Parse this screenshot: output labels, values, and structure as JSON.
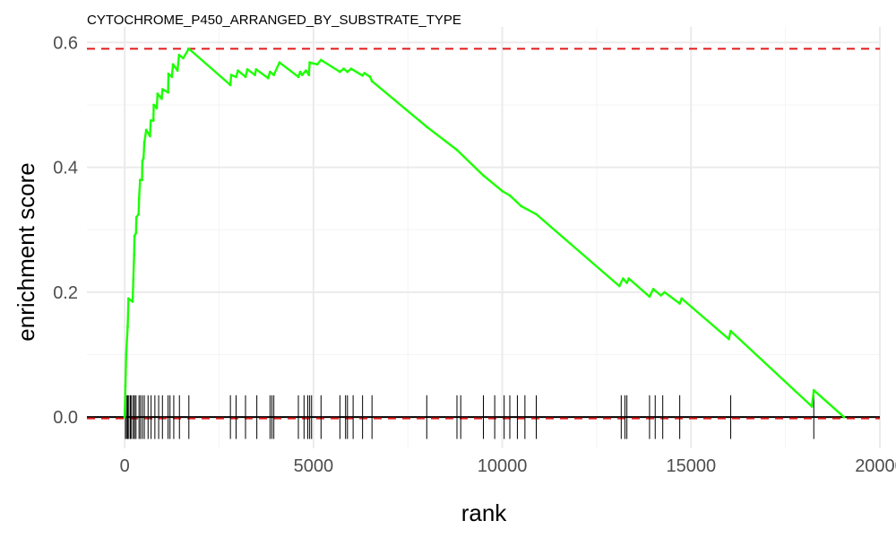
{
  "chart_data": {
    "type": "line",
    "title": "CYTOCHROME_P450_ARRANGED_BY_SUBSTRATE_TYPE",
    "xlabel": "rank",
    "ylabel": "enrichment score",
    "xlim": [
      -1000,
      20000
    ],
    "ylim": [
      -0.05,
      0.625
    ],
    "x_ticks": [
      0,
      5000,
      10000,
      15000,
      20000
    ],
    "x_tick_labels": [
      "0",
      "5000",
      "10000",
      "15000",
      "20000"
    ],
    "y_ticks": [
      0.0,
      0.2,
      0.4,
      0.6
    ],
    "y_tick_labels": [
      "0.0",
      "0.2",
      "0.4",
      "0.6"
    ],
    "grid": true,
    "legend": "none",
    "colors": {
      "curve": "#1cff00",
      "threshold": "#e41a1c",
      "hits": "#000000",
      "zero": "#000000",
      "grid": "#ebebeb"
    },
    "series": [
      {
        "values": [
          [
            0,
            0.0
          ],
          [
            20,
            0.05
          ],
          [
            40,
            0.1
          ],
          [
            80,
            0.145
          ],
          [
            100,
            0.19
          ],
          [
            210,
            0.185
          ],
          [
            230,
            0.22
          ],
          [
            250,
            0.26
          ],
          [
            260,
            0.29
          ],
          [
            300,
            0.295
          ],
          [
            310,
            0.32
          ],
          [
            370,
            0.325
          ],
          [
            380,
            0.35
          ],
          [
            410,
            0.38
          ],
          [
            460,
            0.38
          ],
          [
            470,
            0.41
          ],
          [
            500,
            0.415
          ],
          [
            520,
            0.44
          ],
          [
            570,
            0.46
          ],
          [
            670,
            0.45
          ],
          [
            690,
            0.475
          ],
          [
            760,
            0.475
          ],
          [
            770,
            0.5
          ],
          [
            850,
            0.495
          ],
          [
            870,
            0.518
          ],
          [
            980,
            0.51
          ],
          [
            1000,
            0.525
          ],
          [
            1150,
            0.52
          ],
          [
            1160,
            0.55
          ],
          [
            1250,
            0.545
          ],
          [
            1280,
            0.565
          ],
          [
            1400,
            0.555
          ],
          [
            1440,
            0.58
          ],
          [
            1550,
            0.575
          ],
          [
            1700,
            0.59
          ],
          [
            2800,
            0.532
          ],
          [
            2820,
            0.548
          ],
          [
            2950,
            0.545
          ],
          [
            3000,
            0.555
          ],
          [
            3200,
            0.545
          ],
          [
            3250,
            0.557
          ],
          [
            3450,
            0.548
          ],
          [
            3480,
            0.557
          ],
          [
            3800,
            0.543
          ],
          [
            3850,
            0.553
          ],
          [
            3950,
            0.548
          ],
          [
            4100,
            0.568
          ],
          [
            4600,
            0.545
          ],
          [
            4650,
            0.553
          ],
          [
            4700,
            0.548
          ],
          [
            4800,
            0.555
          ],
          [
            4880,
            0.548
          ],
          [
            4900,
            0.568
          ],
          [
            5100,
            0.565
          ],
          [
            5200,
            0.572
          ],
          [
            5700,
            0.553
          ],
          [
            5800,
            0.558
          ],
          [
            5900,
            0.553
          ],
          [
            6000,
            0.558
          ],
          [
            6300,
            0.547
          ],
          [
            6350,
            0.551
          ],
          [
            6500,
            0.545
          ],
          [
            6550,
            0.538
          ],
          [
            8000,
            0.465
          ],
          [
            8800,
            0.428
          ],
          [
            9500,
            0.387
          ],
          [
            10000,
            0.362
          ],
          [
            10200,
            0.355
          ],
          [
            10500,
            0.338
          ],
          [
            10900,
            0.325
          ],
          [
            13100,
            0.21
          ],
          [
            13200,
            0.222
          ],
          [
            13300,
            0.215
          ],
          [
            13350,
            0.222
          ],
          [
            13900,
            0.193
          ],
          [
            14000,
            0.205
          ],
          [
            14200,
            0.195
          ],
          [
            14300,
            0.2
          ],
          [
            14700,
            0.182
          ],
          [
            14750,
            0.19
          ],
          [
            16000,
            0.125
          ],
          [
            16050,
            0.138
          ],
          [
            18200,
            0.017
          ],
          [
            18250,
            0.043
          ],
          [
            19050,
            0.0
          ]
        ]
      }
    ],
    "threshold_lines": [
      0.59,
      -0.002
    ],
    "hit_ranks": [
      20,
      50,
      80,
      110,
      150,
      180,
      230,
      260,
      300,
      380,
      420,
      470,
      520,
      620,
      700,
      800,
      900,
      1000,
      1150,
      1200,
      1300,
      1450,
      1700,
      2800,
      2950,
      3200,
      3500,
      3850,
      3900,
      3950,
      4600,
      4750,
      4850,
      4900,
      4950,
      5200,
      5700,
      5850,
      5900,
      6050,
      6300,
      6550,
      8000,
      8800,
      8900,
      9500,
      9800,
      10050,
      10200,
      10400,
      10600,
      10900,
      13150,
      13250,
      13300,
      13900,
      14050,
      14250,
      14700,
      16050,
      18250
    ]
  }
}
